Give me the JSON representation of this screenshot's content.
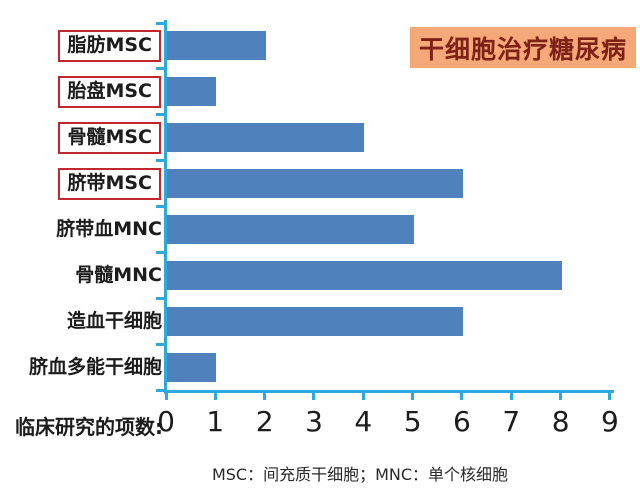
{
  "title": {
    "text": "干细胞治疗糖尿病"
  },
  "chart_data": {
    "type": "bar",
    "orientation": "horizontal",
    "title": "干细胞治疗糖尿病",
    "categories": [
      "脂肪MSC",
      "胎盘MSC",
      "骨髓MSC",
      "脐带MSC",
      "脐带血MNC",
      "骨髓MNC",
      "造血干细胞",
      "脐血多能干细胞"
    ],
    "values": [
      2,
      1,
      4,
      6,
      5,
      8,
      6,
      1
    ],
    "boxed": [
      true,
      true,
      true,
      true,
      false,
      false,
      false,
      false
    ],
    "xlabel": "临床研究的项数:",
    "xticks": [
      "0",
      "1",
      "2",
      "3",
      "4",
      "5",
      "6",
      "7",
      "8",
      "9"
    ],
    "xlim": [
      0,
      9
    ],
    "grid": false,
    "legend": "none",
    "bar_color": "#4f81bd",
    "axis_color": "#2ea9df",
    "highlight_box_color": "#c1272d",
    "title_bg_color": "#f5a878",
    "title_text_color": "#7e2217"
  },
  "footer": {
    "text": "MSC：间充质干细胞；MNC：单个核细胞"
  }
}
